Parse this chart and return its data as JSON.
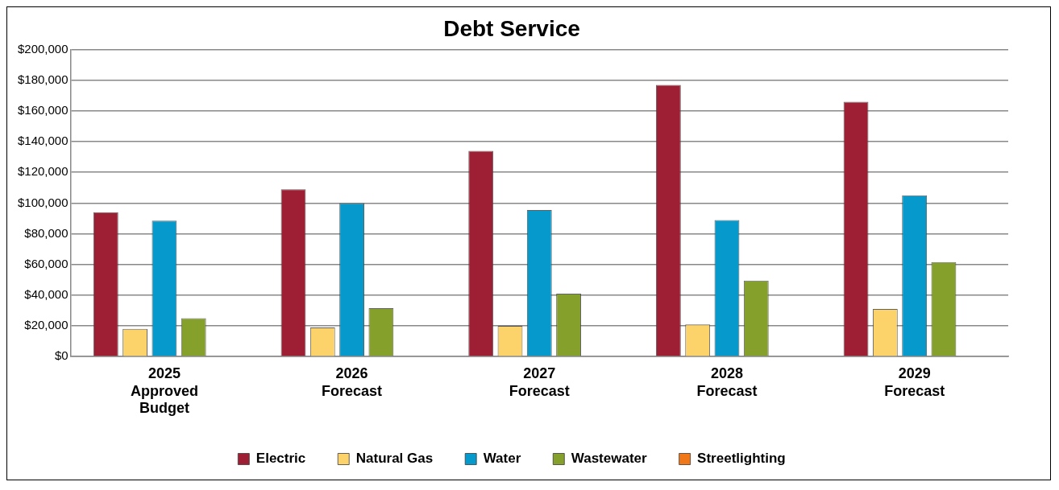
{
  "chart_data": {
    "type": "bar",
    "title": "Debt Service",
    "categories": [
      "2025 Approved Budget",
      "2026 Forecast",
      "2027 Forecast",
      "2028 Forecast",
      "2029 Forecast"
    ],
    "series": [
      {
        "name": "Electric",
        "color": "#9e1f33",
        "values": [
          94000,
          109000,
          134000,
          177000,
          166000
        ]
      },
      {
        "name": "Natural Gas",
        "color": "#fcd36b",
        "values": [
          18000,
          19000,
          20000,
          21000,
          31000
        ]
      },
      {
        "name": "Water",
        "color": "#0599cc",
        "values": [
          88500,
          100000,
          95500,
          89000,
          105000
        ]
      },
      {
        "name": "Wastewater",
        "color": "#86a02c",
        "values": [
          25000,
          31500,
          41000,
          49500,
          61500
        ]
      },
      {
        "name": "Streetlighting",
        "color": "#f07818",
        "values": [
          0,
          0,
          0,
          0,
          0
        ]
      }
    ],
    "ylim": [
      0,
      200000
    ],
    "yticks": [
      {
        "value": 0,
        "label": "$0"
      },
      {
        "value": 20000,
        "label": "$20,000"
      },
      {
        "value": 40000,
        "label": "$40,000"
      },
      {
        "value": 60000,
        "label": "$60,000"
      },
      {
        "value": 80000,
        "label": "$80,000"
      },
      {
        "value": 100000,
        "label": "$100,000"
      },
      {
        "value": 120000,
        "label": "$120,000"
      },
      {
        "value": 140000,
        "label": "$140,000"
      },
      {
        "value": 160000,
        "label": "$160,000"
      },
      {
        "value": 180000,
        "label": "$180,000"
      },
      {
        "value": 200000,
        "label": "$200,000"
      }
    ],
    "grid": "y",
    "legend": "bottom"
  }
}
